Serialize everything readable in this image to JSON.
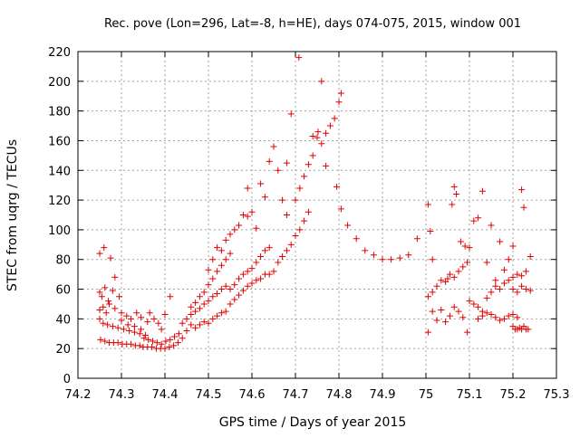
{
  "chart_data": {
    "type": "scatter",
    "title": "Rec. pove (Lon=296, Lat=-8, h=HE), days 074-075, 2015, window 001",
    "xlabel": "GPS time / Days of year 2015",
    "ylabel": "STEC from uqrg / TECUs",
    "xlim": [
      74.2,
      75.3
    ],
    "ylim": [
      0,
      220
    ],
    "x_ticks": [
      "74.2",
      "74.3",
      "74.4",
      "74.5",
      "74.6",
      "74.7",
      "74.8",
      "74.9",
      "75",
      "75.1",
      "75.2",
      "75.3"
    ],
    "y_ticks": [
      "0",
      "20",
      "40",
      "60",
      "80",
      "100",
      "120",
      "140",
      "160",
      "180",
      "200",
      "220"
    ],
    "grid": true,
    "marker": "+",
    "color": "#e00000",
    "series": [
      {
        "points": [
          [
            74.25,
            84
          ],
          [
            74.26,
            88
          ],
          [
            74.275,
            81
          ],
          [
            74.25,
            58
          ],
          [
            74.255,
            55
          ],
          [
            74.262,
            61
          ],
          [
            74.27,
            52
          ],
          [
            74.28,
            59
          ],
          [
            74.285,
            68
          ],
          [
            74.295,
            55
          ],
          [
            74.25,
            46
          ],
          [
            74.258,
            48
          ],
          [
            74.265,
            44
          ],
          [
            74.272,
            50
          ],
          [
            74.285,
            47
          ],
          [
            74.3,
            44
          ],
          [
            74.312,
            42
          ],
          [
            74.322,
            40
          ],
          [
            74.335,
            44
          ],
          [
            74.345,
            41
          ],
          [
            74.25,
            40
          ],
          [
            74.258,
            37
          ],
          [
            74.268,
            36
          ],
          [
            74.28,
            35
          ],
          [
            74.292,
            34
          ],
          [
            74.305,
            33
          ],
          [
            74.318,
            32
          ],
          [
            74.33,
            31
          ],
          [
            74.342,
            30
          ],
          [
            74.355,
            29
          ],
          [
            74.252,
            26
          ],
          [
            74.262,
            25
          ],
          [
            74.272,
            24
          ],
          [
            74.282,
            24
          ],
          [
            74.292,
            24
          ],
          [
            74.302,
            23
          ],
          [
            74.312,
            23
          ],
          [
            74.322,
            23
          ],
          [
            74.332,
            22
          ],
          [
            74.342,
            22
          ],
          [
            74.35,
            21
          ],
          [
            74.36,
            21
          ],
          [
            74.37,
            21
          ],
          [
            74.38,
            20
          ],
          [
            74.39,
            20
          ],
          [
            74.4,
            20
          ],
          [
            74.41,
            21
          ],
          [
            74.42,
            22
          ],
          [
            74.43,
            24
          ],
          [
            74.44,
            27
          ],
          [
            74.3,
            39
          ],
          [
            74.315,
            36
          ],
          [
            74.33,
            35
          ],
          [
            74.345,
            33
          ],
          [
            74.36,
            38
          ],
          [
            74.365,
            44
          ],
          [
            74.375,
            40
          ],
          [
            74.385,
            37
          ],
          [
            74.392,
            33
          ],
          [
            74.4,
            43
          ],
          [
            74.352,
            27
          ],
          [
            74.362,
            26
          ],
          [
            74.372,
            25
          ],
          [
            74.382,
            24
          ],
          [
            74.392,
            23
          ],
          [
            74.402,
            25
          ],
          [
            74.412,
            26
          ],
          [
            74.422,
            28
          ],
          [
            74.412,
            55
          ],
          [
            74.432,
            30
          ],
          [
            74.44,
            37
          ],
          [
            74.45,
            32
          ],
          [
            74.46,
            36
          ],
          [
            74.47,
            34
          ],
          [
            74.48,
            36
          ],
          [
            74.49,
            38
          ],
          [
            74.5,
            37
          ],
          [
            74.51,
            40
          ],
          [
            74.52,
            42
          ],
          [
            74.53,
            44
          ],
          [
            74.45,
            40
          ],
          [
            74.46,
            43
          ],
          [
            74.47,
            45
          ],
          [
            74.48,
            47
          ],
          [
            74.49,
            50
          ],
          [
            74.5,
            52
          ],
          [
            74.51,
            55
          ],
          [
            74.52,
            57
          ],
          [
            74.53,
            60
          ],
          [
            74.54,
            62
          ],
          [
            74.46,
            48
          ],
          [
            74.47,
            51
          ],
          [
            74.48,
            55
          ],
          [
            74.49,
            58
          ],
          [
            74.5,
            63
          ],
          [
            74.51,
            67
          ],
          [
            74.52,
            72
          ],
          [
            74.53,
            76
          ],
          [
            74.54,
            80
          ],
          [
            74.55,
            84
          ],
          [
            74.5,
            73
          ],
          [
            74.51,
            80
          ],
          [
            74.52,
            88
          ],
          [
            74.53,
            86
          ],
          [
            74.54,
            93
          ],
          [
            74.55,
            97
          ],
          [
            74.56,
            100
          ],
          [
            74.57,
            103
          ],
          [
            74.58,
            110
          ],
          [
            74.59,
            109
          ],
          [
            74.54,
            45
          ],
          [
            74.55,
            50
          ],
          [
            74.56,
            53
          ],
          [
            74.57,
            56
          ],
          [
            74.58,
            59
          ],
          [
            74.59,
            62
          ],
          [
            74.6,
            64
          ],
          [
            74.61,
            66
          ],
          [
            74.62,
            67
          ],
          [
            74.63,
            70
          ],
          [
            74.55,
            60
          ],
          [
            74.56,
            63
          ],
          [
            74.57,
            67
          ],
          [
            74.58,
            70
          ],
          [
            74.59,
            72
          ],
          [
            74.6,
            74
          ],
          [
            74.61,
            78
          ],
          [
            74.62,
            82
          ],
          [
            74.63,
            86
          ],
          [
            74.64,
            88
          ],
          [
            74.59,
            128
          ],
          [
            74.6,
            112
          ],
          [
            74.61,
            101
          ],
          [
            74.62,
            131
          ],
          [
            74.63,
            122
          ],
          [
            74.64,
            146
          ],
          [
            74.65,
            156
          ],
          [
            74.66,
            140
          ],
          [
            74.67,
            120
          ],
          [
            74.68,
            110
          ],
          [
            74.64,
            70
          ],
          [
            74.65,
            72
          ],
          [
            74.66,
            78
          ],
          [
            74.67,
            82
          ],
          [
            74.68,
            86
          ],
          [
            74.69,
            90
          ],
          [
            74.7,
            96
          ],
          [
            74.71,
            100
          ],
          [
            74.72,
            106
          ],
          [
            74.73,
            112
          ],
          [
            74.68,
            145
          ],
          [
            74.69,
            178
          ],
          [
            74.7,
            120
          ],
          [
            74.71,
            128
          ],
          [
            74.72,
            136
          ],
          [
            74.73,
            144
          ],
          [
            74.74,
            150
          ],
          [
            74.75,
            162
          ],
          [
            74.76,
            158
          ],
          [
            74.77,
            143
          ],
          [
            74.708,
            216
          ],
          [
            74.76,
            200
          ],
          [
            74.74,
            163
          ],
          [
            74.752,
            166
          ],
          [
            74.77,
            165
          ],
          [
            74.78,
            170
          ],
          [
            74.79,
            175
          ],
          [
            74.8,
            186
          ],
          [
            74.805,
            192
          ],
          [
            74.795,
            129
          ],
          [
            74.805,
            114
          ],
          [
            74.82,
            103
          ],
          [
            74.84,
            94
          ],
          [
            74.86,
            86
          ],
          [
            74.88,
            83
          ],
          [
            74.9,
            80
          ],
          [
            74.92,
            80
          ],
          [
            74.94,
            81
          ],
          [
            74.96,
            83
          ],
          [
            74.98,
            94
          ],
          [
            75.005,
            31
          ],
          [
            75.015,
            45
          ],
          [
            75.025,
            39
          ],
          [
            75.035,
            46
          ],
          [
            75.045,
            38
          ],
          [
            75.055,
            42
          ],
          [
            75.065,
            48
          ],
          [
            75.075,
            45
          ],
          [
            75.085,
            41
          ],
          [
            75.095,
            31
          ],
          [
            75.005,
            55
          ],
          [
            75.015,
            58
          ],
          [
            75.025,
            62
          ],
          [
            75.035,
            66
          ],
          [
            75.045,
            65
          ],
          [
            75.055,
            70
          ],
          [
            75.065,
            68
          ],
          [
            75.075,
            72
          ],
          [
            75.085,
            75
          ],
          [
            75.095,
            78
          ],
          [
            75.005,
            117
          ],
          [
            75.01,
            99
          ],
          [
            75.015,
            80
          ],
          [
            75.05,
            67
          ],
          [
            75.06,
            117
          ],
          [
            75.065,
            129
          ],
          [
            75.07,
            124
          ],
          [
            75.08,
            92
          ],
          [
            75.09,
            89
          ],
          [
            75.1,
            88
          ],
          [
            75.1,
            52
          ],
          [
            75.11,
            50
          ],
          [
            75.12,
            48
          ],
          [
            75.13,
            45
          ],
          [
            75.14,
            54
          ],
          [
            75.15,
            58
          ],
          [
            75.16,
            62
          ],
          [
            75.17,
            60
          ],
          [
            75.18,
            64
          ],
          [
            75.19,
            66
          ],
          [
            75.11,
            106
          ],
          [
            75.12,
            108
          ],
          [
            75.13,
            126
          ],
          [
            75.14,
            78
          ],
          [
            75.15,
            103
          ],
          [
            75.16,
            66
          ],
          [
            75.17,
            92
          ],
          [
            75.18,
            73
          ],
          [
            75.19,
            80
          ],
          [
            75.2,
            89
          ],
          [
            75.12,
            40
          ],
          [
            75.13,
            42
          ],
          [
            75.14,
            44
          ],
          [
            75.15,
            43
          ],
          [
            75.16,
            41
          ],
          [
            75.17,
            39
          ],
          [
            75.18,
            40
          ],
          [
            75.19,
            42
          ],
          [
            75.2,
            43
          ],
          [
            75.21,
            41
          ],
          [
            75.2,
            35
          ],
          [
            75.205,
            33
          ],
          [
            75.21,
            33
          ],
          [
            75.215,
            34
          ],
          [
            75.22,
            33
          ],
          [
            75.225,
            35
          ],
          [
            75.23,
            33
          ],
          [
            75.235,
            33
          ],
          [
            75.22,
            127
          ],
          [
            75.225,
            115
          ],
          [
            75.2,
            60
          ],
          [
            75.21,
            58
          ],
          [
            75.22,
            62
          ],
          [
            75.23,
            60
          ],
          [
            75.24,
            59
          ],
          [
            75.2,
            68
          ],
          [
            75.21,
            70
          ],
          [
            75.22,
            69
          ],
          [
            75.23,
            72
          ],
          [
            75.24,
            82
          ]
        ]
      }
    ]
  }
}
